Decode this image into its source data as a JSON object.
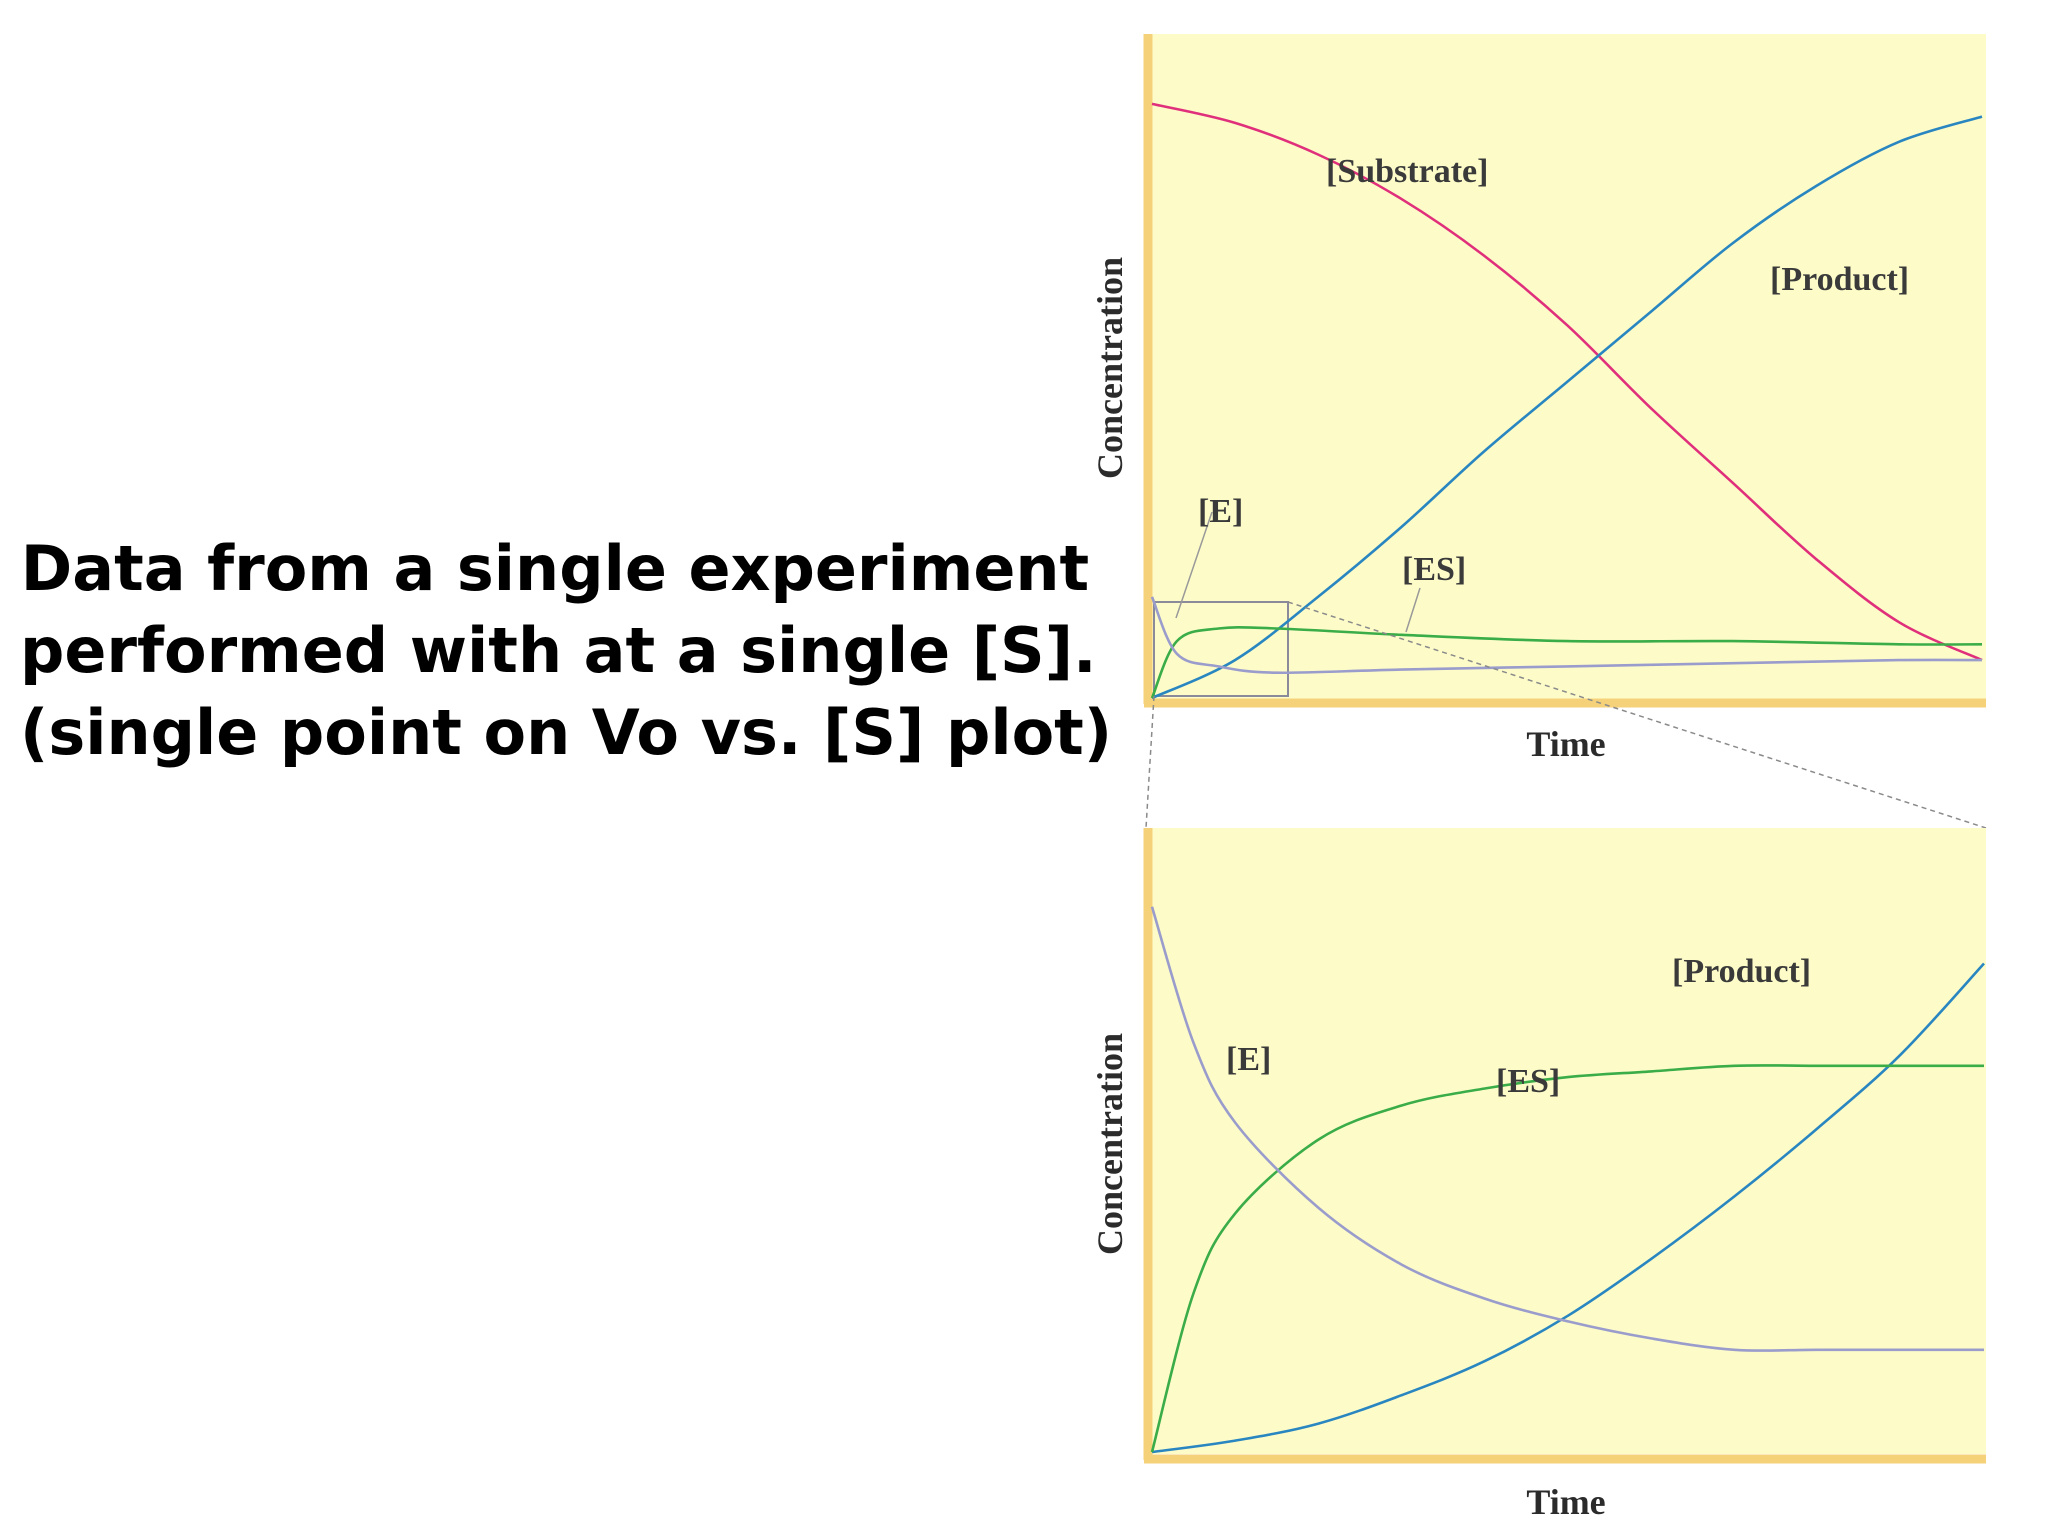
{
  "caption": {
    "line1": "Data from a single experiment",
    "line2": "performed with at a single [S].",
    "line3": "(single point on Vo vs. [S] plot)"
  },
  "colors": {
    "background_panel": "#fdfcc9",
    "axis": "#f5d27a",
    "substrate": "#e0307c",
    "product": "#2a86c0",
    "es": "#3aac48",
    "e": "#9a9ccc"
  },
  "chart_data": [
    {
      "type": "line",
      "xlabel": "Time",
      "ylabel": "Concentration",
      "series": [
        {
          "name": "[Substrate]",
          "color": "#e0307c",
          "x": [
            0,
            0.1,
            0.2,
            0.3,
            0.4,
            0.5,
            0.6,
            0.7,
            0.8,
            0.9,
            1.0
          ],
          "y": [
            0.94,
            0.91,
            0.86,
            0.79,
            0.7,
            0.59,
            0.46,
            0.34,
            0.22,
            0.12,
            0.06
          ]
        },
        {
          "name": "[Product]",
          "color": "#2a86c0",
          "x": [
            0,
            0.1,
            0.2,
            0.3,
            0.4,
            0.5,
            0.6,
            0.7,
            0.8,
            0.9,
            1.0
          ],
          "y": [
            0.0,
            0.06,
            0.16,
            0.27,
            0.39,
            0.5,
            0.61,
            0.72,
            0.81,
            0.88,
            0.92
          ]
        },
        {
          "name": "[ES]",
          "color": "#3aac48",
          "x": [
            0,
            0.03,
            0.08,
            0.15,
            0.3,
            0.5,
            0.7,
            0.9,
            1.0
          ],
          "y": [
            0.0,
            0.09,
            0.11,
            0.11,
            0.1,
            0.09,
            0.09,
            0.085,
            0.085
          ]
        },
        {
          "name": "[E]",
          "color": "#9a9ccc",
          "x": [
            0,
            0.03,
            0.08,
            0.15,
            0.3,
            0.5,
            0.7,
            0.9,
            1.0
          ],
          "y": [
            0.16,
            0.07,
            0.05,
            0.04,
            0.045,
            0.05,
            0.055,
            0.06,
            0.06
          ]
        }
      ]
    },
    {
      "type": "line",
      "xlabel": "Time",
      "ylabel": "Concentration",
      "series": [
        {
          "name": "[Product]",
          "color": "#2a86c0",
          "x": [
            0,
            0.1,
            0.2,
            0.3,
            0.4,
            0.5,
            0.6,
            0.7,
            0.8,
            0.9,
            1.0
          ],
          "y": [
            0.0,
            0.02,
            0.05,
            0.1,
            0.16,
            0.24,
            0.34,
            0.45,
            0.57,
            0.7,
            0.86
          ]
        },
        {
          "name": "[ES]",
          "color": "#3aac48",
          "x": [
            0,
            0.05,
            0.1,
            0.2,
            0.3,
            0.4,
            0.5,
            0.6,
            0.7,
            0.8,
            0.9,
            1.0
          ],
          "y": [
            0.0,
            0.28,
            0.42,
            0.55,
            0.61,
            0.64,
            0.66,
            0.67,
            0.68,
            0.68,
            0.68,
            0.68
          ]
        },
        {
          "name": "[E]",
          "color": "#9a9ccc",
          "x": [
            0,
            0.05,
            0.1,
            0.2,
            0.3,
            0.4,
            0.5,
            0.6,
            0.7,
            0.8,
            0.9,
            1.0
          ],
          "y": [
            0.96,
            0.72,
            0.58,
            0.43,
            0.33,
            0.27,
            0.23,
            0.2,
            0.18,
            0.18,
            0.18,
            0.18
          ]
        }
      ]
    }
  ]
}
